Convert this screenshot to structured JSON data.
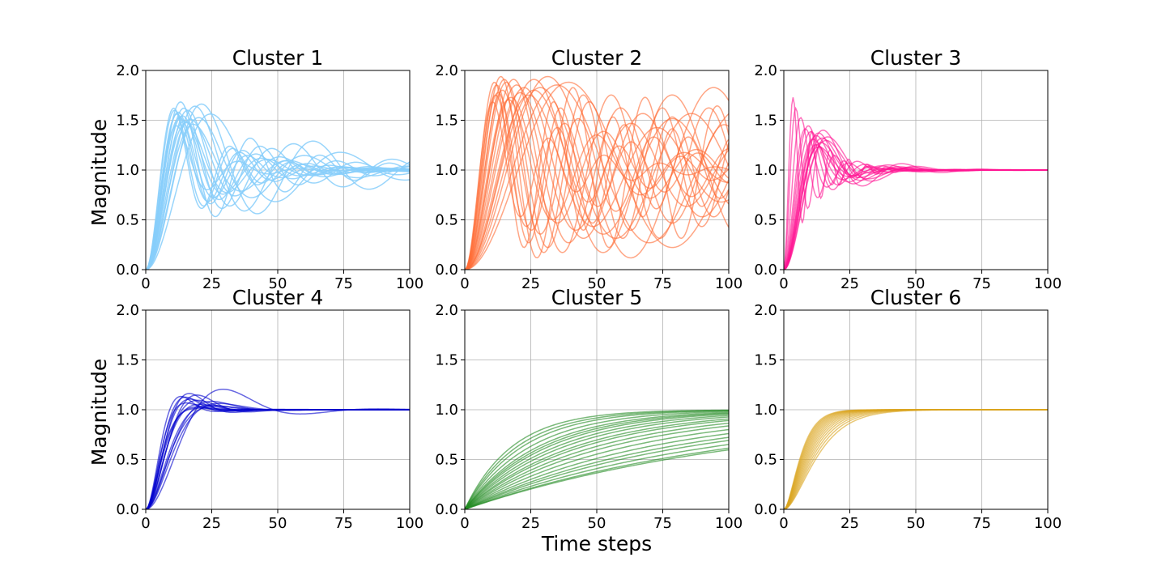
{
  "figure": {
    "xlabel": "Time steps",
    "ylabel": "Magnitude"
  },
  "chart_data": [
    {
      "type": "line",
      "title": "Cluster 1",
      "color": "#87cefa",
      "xlim": [
        0,
        100
      ],
      "ylim": [
        0,
        2.0
      ],
      "xticks": [
        0,
        25,
        50,
        75,
        100
      ],
      "yticks": [
        0.0,
        0.5,
        1.0,
        1.5,
        2.0
      ],
      "grid": true,
      "legend": "none",
      "series": [
        {
          "zeta": 0.15,
          "wn": 0.3
        },
        {
          "zeta": 0.18,
          "wn": 0.27
        },
        {
          "zeta": 0.2,
          "wn": 0.25
        },
        {
          "zeta": 0.22,
          "wn": 0.22
        },
        {
          "zeta": 0.16,
          "wn": 0.2
        },
        {
          "zeta": 0.25,
          "wn": 0.28
        },
        {
          "zeta": 0.14,
          "wn": 0.17
        },
        {
          "zeta": 0.19,
          "wn": 0.23
        },
        {
          "zeta": 0.17,
          "wn": 0.26
        },
        {
          "zeta": 0.21,
          "wn": 0.19
        },
        {
          "zeta": 0.12,
          "wn": 0.24
        },
        {
          "zeta": 0.23,
          "wn": 0.21
        },
        {
          "zeta": 0.13,
          "wn": 0.15
        },
        {
          "zeta": 0.24,
          "wn": 0.18
        },
        {
          "zeta": 0.16,
          "wn": 0.29
        },
        {
          "zeta": 0.2,
          "wn": 0.16
        },
        {
          "zeta": 0.18,
          "wn": 0.13
        },
        {
          "zeta": 0.15,
          "wn": 0.22
        }
      ]
    },
    {
      "type": "line",
      "title": "Cluster 2",
      "color": "#ff6a33",
      "xlim": [
        0,
        100
      ],
      "ylim": [
        0,
        2.0
      ],
      "xticks": [
        0,
        25,
        50,
        75,
        100
      ],
      "yticks": [
        0.0,
        0.5,
        1.0,
        1.5,
        2.0
      ],
      "grid": true,
      "legend": "none",
      "series": [
        {
          "zeta": 0.03,
          "wn": 0.12
        },
        {
          "zeta": 0.05,
          "wn": 0.16
        },
        {
          "zeta": 0.04,
          "wn": 0.2
        },
        {
          "zeta": 0.08,
          "wn": 0.25
        },
        {
          "zeta": 0.06,
          "wn": 0.14
        },
        {
          "zeta": 0.1,
          "wn": 0.18
        },
        {
          "zeta": 0.02,
          "wn": 0.1
        },
        {
          "zeta": 0.07,
          "wn": 0.22
        },
        {
          "zeta": 0.04,
          "wn": 0.28
        },
        {
          "zeta": 0.09,
          "wn": 0.13
        },
        {
          "zeta": 0.05,
          "wn": 0.09
        },
        {
          "zeta": 0.03,
          "wn": 0.17
        },
        {
          "zeta": 0.12,
          "wn": 0.3
        },
        {
          "zeta": 0.06,
          "wn": 0.11
        },
        {
          "zeta": 0.08,
          "wn": 0.15
        },
        {
          "zeta": 0.02,
          "wn": 0.23
        },
        {
          "zeta": 0.11,
          "wn": 0.19
        },
        {
          "zeta": 0.05,
          "wn": 0.26
        },
        {
          "zeta": 0.04,
          "wn": 0.08
        },
        {
          "zeta": 0.07,
          "wn": 0.12
        },
        {
          "zeta": 0.03,
          "wn": 0.21
        },
        {
          "zeta": 0.09,
          "wn": 0.27
        }
      ]
    },
    {
      "type": "line",
      "title": "Cluster 3",
      "color": "#ff1493",
      "xlim": [
        0,
        100
      ],
      "ylim": [
        0,
        2.0
      ],
      "xticks": [
        0,
        25,
        50,
        75,
        100
      ],
      "yticks": [
        0.0,
        0.5,
        1.0,
        1.5,
        2.0
      ],
      "grid": true,
      "legend": "none",
      "series": [
        {
          "zeta": 0.3,
          "wn": 0.25
        },
        {
          "zeta": 0.35,
          "wn": 0.3
        },
        {
          "zeta": 0.28,
          "wn": 0.22
        },
        {
          "zeta": 0.4,
          "wn": 0.28
        },
        {
          "zeta": 0.33,
          "wn": 0.2
        },
        {
          "zeta": 0.1,
          "wn": 0.9
        },
        {
          "zeta": 0.15,
          "wn": 0.7
        },
        {
          "zeta": 0.25,
          "wn": 0.35
        },
        {
          "zeta": 0.38,
          "wn": 0.24
        },
        {
          "zeta": 0.32,
          "wn": 0.27
        },
        {
          "zeta": 0.2,
          "wn": 0.5
        },
        {
          "zeta": 0.36,
          "wn": 0.21
        },
        {
          "zeta": 0.29,
          "wn": 0.32
        },
        {
          "zeta": 0.42,
          "wn": 0.26
        },
        {
          "zeta": 0.27,
          "wn": 0.4
        },
        {
          "zeta": 0.34,
          "wn": 0.23
        }
      ]
    },
    {
      "type": "line",
      "title": "Cluster 4",
      "color": "#0000cd",
      "xlim": [
        0,
        100
      ],
      "ylim": [
        0,
        2.0
      ],
      "xticks": [
        0,
        25,
        50,
        75,
        100
      ],
      "yticks": [
        0.0,
        0.5,
        1.0,
        1.5,
        2.0
      ],
      "grid": true,
      "legend": "none",
      "series": [
        {
          "zeta": 0.5,
          "wn": 0.22
        },
        {
          "zeta": 0.55,
          "wn": 0.25
        },
        {
          "zeta": 0.6,
          "wn": 0.2
        },
        {
          "zeta": 0.65,
          "wn": 0.27
        },
        {
          "zeta": 0.7,
          "wn": 0.18
        },
        {
          "zeta": 0.58,
          "wn": 0.23
        },
        {
          "zeta": 0.52,
          "wn": 0.19
        },
        {
          "zeta": 0.75,
          "wn": 0.24
        },
        {
          "zeta": 0.62,
          "wn": 0.16
        },
        {
          "zeta": 0.68,
          "wn": 0.21
        },
        {
          "zeta": 0.8,
          "wn": 0.26
        },
        {
          "zeta": 0.54,
          "wn": 0.28
        },
        {
          "zeta": 0.72,
          "wn": 0.17
        },
        {
          "zeta": 0.66,
          "wn": 0.15
        },
        {
          "zeta": 0.45,
          "wn": 0.12
        }
      ]
    },
    {
      "type": "line",
      "title": "Cluster 5",
      "color": "#228b22",
      "xlim": [
        0,
        100
      ],
      "ylim": [
        0,
        2.0
      ],
      "xticks": [
        0,
        25,
        50,
        75,
        100
      ],
      "yticks": [
        0.0,
        0.5,
        1.0,
        1.5,
        2.0
      ],
      "grid": true,
      "legend": "none",
      "series": [
        {
          "tau": 18
        },
        {
          "tau": 20
        },
        {
          "tau": 22
        },
        {
          "tau": 25
        },
        {
          "tau": 28
        },
        {
          "tau": 30
        },
        {
          "tau": 32
        },
        {
          "tau": 35
        },
        {
          "tau": 38
        },
        {
          "tau": 42
        },
        {
          "tau": 45
        },
        {
          "tau": 50
        },
        {
          "tau": 55
        },
        {
          "tau": 62
        },
        {
          "tau": 70
        },
        {
          "tau": 78
        },
        {
          "tau": 85
        },
        {
          "tau": 95
        },
        {
          "tau": 105
        },
        {
          "tau": 110
        }
      ]
    },
    {
      "type": "line",
      "title": "Cluster 6",
      "color": "#daa520",
      "xlim": [
        0,
        100
      ],
      "ylim": [
        0,
        2.0
      ],
      "xticks": [
        0,
        25,
        50,
        75,
        100
      ],
      "yticks": [
        0.0,
        0.5,
        1.0,
        1.5,
        2.0
      ],
      "grid": true,
      "legend": "none",
      "series": [
        {
          "wn": 0.14
        },
        {
          "wn": 0.15
        },
        {
          "wn": 0.16
        },
        {
          "wn": 0.17
        },
        {
          "wn": 0.18
        },
        {
          "wn": 0.19
        },
        {
          "wn": 0.2
        },
        {
          "wn": 0.21
        },
        {
          "wn": 0.22
        },
        {
          "wn": 0.23
        },
        {
          "wn": 0.24
        },
        {
          "wn": 0.25
        },
        {
          "wn": 0.26
        },
        {
          "wn": 0.27
        },
        {
          "wn": 0.28
        }
      ]
    }
  ]
}
